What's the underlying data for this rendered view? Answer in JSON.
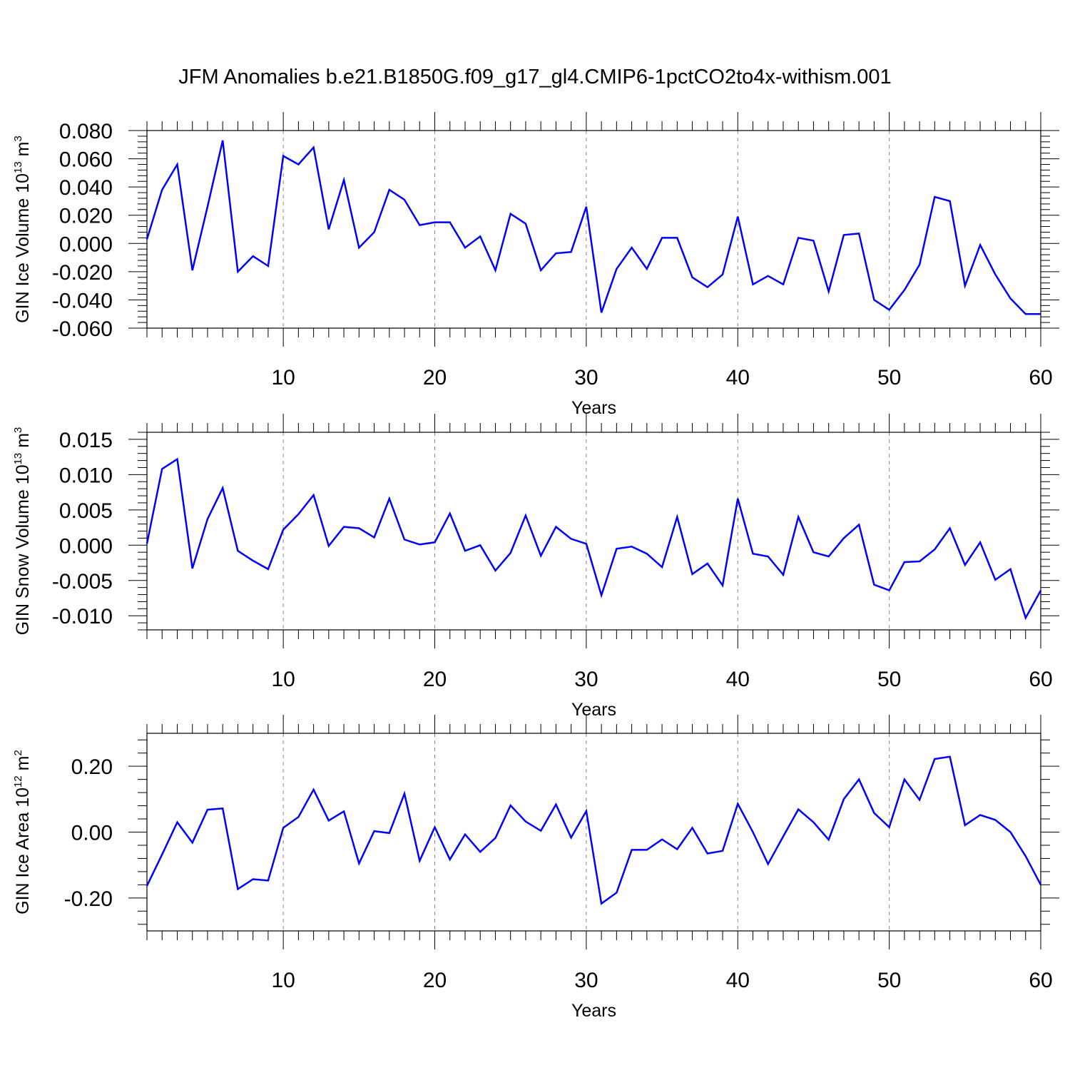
{
  "title": "JFM Anomalies b.e21.B1850G.f09_g17_gl4.CMIP6-1pctCO2to4x-withism.001",
  "colors": {
    "line": "#0000ff",
    "axis": "#000000",
    "grid": "#888888"
  },
  "chart_data": [
    {
      "type": "line",
      "ylabel": "GIN Ice Volume 10",
      "ylabel_exp": "13",
      "ylabel_unit": " m",
      "ylabel_unit_exp": "3",
      "xlabel": "Years",
      "xlim": [
        1,
        60
      ],
      "ylim": [
        -0.06,
        0.08
      ],
      "xticks": [
        10,
        20,
        30,
        40,
        50,
        60
      ],
      "yticks": [
        "-0.060",
        "-0.040",
        "-0.020",
        "0.000",
        "0.020",
        "0.040",
        "0.060",
        "0.080"
      ],
      "ytick_values": [
        -0.06,
        -0.04,
        -0.02,
        0.0,
        0.02,
        0.04,
        0.06,
        0.08
      ],
      "grid": "vertical dashed at major x ticks",
      "x": [
        1,
        2,
        3,
        4,
        5,
        6,
        7,
        8,
        9,
        10,
        11,
        12,
        13,
        14,
        15,
        16,
        17,
        18,
        19,
        20,
        21,
        22,
        23,
        24,
        25,
        26,
        27,
        28,
        29,
        30,
        31,
        32,
        33,
        34,
        35,
        36,
        37,
        38,
        39,
        40,
        41,
        42,
        43,
        44,
        45,
        46,
        47,
        48,
        49,
        50,
        51,
        52,
        53,
        54,
        55,
        56,
        57,
        58,
        59,
        60
      ],
      "values": [
        0.003,
        0.038,
        0.056,
        -0.019,
        0.026,
        0.073,
        -0.02,
        -0.009,
        -0.016,
        0.062,
        0.056,
        0.068,
        0.01,
        0.045,
        -0.003,
        0.008,
        0.038,
        0.031,
        0.013,
        0.015,
        0.015,
        -0.003,
        0.005,
        -0.019,
        0.021,
        0.014,
        -0.019,
        -0.007,
        -0.006,
        0.026,
        -0.049,
        -0.018,
        -0.003,
        -0.018,
        0.004,
        0.004,
        -0.024,
        -0.031,
        -0.022,
        0.019,
        -0.029,
        -0.023,
        -0.029,
        0.004,
        0.002,
        -0.034,
        0.006,
        0.007,
        -0.04,
        -0.047,
        -0.033,
        -0.015,
        0.033,
        0.03,
        -0.03,
        -0.001,
        -0.022,
        -0.039,
        -0.05,
        -0.05
      ]
    },
    {
      "type": "line",
      "ylabel": "GIN Snow Volume 10",
      "ylabel_exp": "13",
      "ylabel_unit": " m",
      "ylabel_unit_exp": "3",
      "xlabel": "Years",
      "xlim": [
        1,
        60
      ],
      "ylim": [
        -0.012,
        0.016
      ],
      "xticks": [
        10,
        20,
        30,
        40,
        50,
        60
      ],
      "yticks": [
        "-0.010",
        "-0.005",
        "0.000",
        "0.005",
        "0.010",
        "0.015"
      ],
      "ytick_values": [
        -0.01,
        -0.005,
        0.0,
        0.005,
        0.01,
        0.015
      ],
      "grid": "vertical dashed at major x ticks",
      "x": [
        1,
        2,
        3,
        4,
        5,
        6,
        7,
        8,
        9,
        10,
        11,
        12,
        13,
        14,
        15,
        16,
        17,
        18,
        19,
        20,
        21,
        22,
        23,
        24,
        25,
        26,
        27,
        28,
        29,
        30,
        31,
        32,
        33,
        34,
        35,
        36,
        37,
        38,
        39,
        40,
        41,
        42,
        43,
        44,
        45,
        46,
        47,
        48,
        49,
        50,
        51,
        52,
        53,
        54,
        55,
        56,
        57,
        58,
        59,
        60
      ],
      "values": [
        0.0002,
        0.0108,
        0.0122,
        -0.0033,
        0.0037,
        0.0081,
        -0.0008,
        -0.0022,
        -0.0034,
        0.0022,
        0.0044,
        0.0071,
        -0.0001,
        0.0026,
        0.0024,
        0.0011,
        0.0066,
        0.0008,
        0.0001,
        0.0004,
        0.0045,
        -0.0008,
        0.0,
        -0.0036,
        -0.0011,
        0.0042,
        -0.0015,
        0.0026,
        0.0009,
        0.0002,
        -0.0071,
        -0.0005,
        -0.0002,
        -0.0012,
        -0.0031,
        0.004,
        -0.0041,
        -0.0026,
        -0.0057,
        0.0066,
        -0.0012,
        -0.0016,
        -0.0042,
        0.004,
        -0.001,
        -0.0016,
        0.001,
        0.0029,
        -0.0056,
        -0.0064,
        -0.0024,
        -0.0023,
        -0.0006,
        0.0024,
        -0.0028,
        0.0004,
        -0.0049,
        -0.0034,
        -0.0103,
        -0.0064
      ]
    },
    {
      "type": "line",
      "ylabel": "GIN Ice Area 10",
      "ylabel_exp": "12",
      "ylabel_unit": " m",
      "ylabel_unit_exp": "2",
      "xlabel": "Years",
      "xlim": [
        1,
        60
      ],
      "ylim": [
        -0.3,
        0.3
      ],
      "xticks": [
        10,
        20,
        30,
        40,
        50,
        60
      ],
      "yticks": [
        "-0.20",
        "0.00",
        "0.20"
      ],
      "ytick_values": [
        -0.2,
        0.0,
        0.2
      ],
      "grid": "vertical dashed at major x ticks",
      "x": [
        1,
        2,
        3,
        4,
        5,
        6,
        7,
        8,
        9,
        10,
        11,
        12,
        13,
        14,
        15,
        16,
        17,
        18,
        19,
        20,
        21,
        22,
        23,
        24,
        25,
        26,
        27,
        28,
        29,
        30,
        31,
        32,
        33,
        34,
        35,
        36,
        37,
        38,
        39,
        40,
        41,
        42,
        43,
        44,
        45,
        46,
        47,
        48,
        49,
        50,
        51,
        52,
        53,
        54,
        55,
        56,
        57,
        58,
        59,
        60
      ],
      "values": [
        -0.163,
        -0.068,
        0.03,
        -0.032,
        0.068,
        0.072,
        -0.173,
        -0.143,
        -0.147,
        0.013,
        0.046,
        0.129,
        0.035,
        0.063,
        -0.095,
        0.003,
        -0.003,
        0.117,
        -0.087,
        0.015,
        -0.083,
        -0.007,
        -0.06,
        -0.018,
        0.081,
        0.032,
        0.004,
        0.084,
        -0.017,
        0.064,
        -0.217,
        -0.184,
        -0.054,
        -0.054,
        -0.022,
        -0.052,
        0.013,
        -0.065,
        -0.057,
        0.086,
        0.0,
        -0.097,
        -0.013,
        0.069,
        0.03,
        -0.023,
        0.1,
        0.16,
        0.058,
        0.015,
        0.16,
        0.098,
        0.222,
        0.229,
        0.021,
        0.052,
        0.037,
        0.0,
        -0.073,
        -0.16
      ]
    }
  ]
}
